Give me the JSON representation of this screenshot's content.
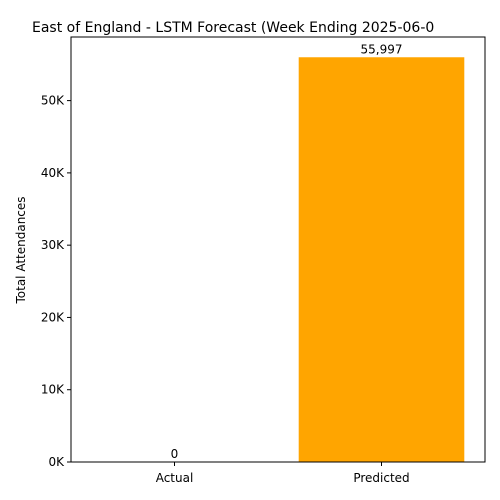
{
  "chart_data": {
    "type": "bar",
    "title": "East of England - LSTM Forecast (Week Ending 2025-06-0",
    "xlabel": "",
    "ylabel": "Total Attendances",
    "categories": [
      "Actual",
      "Predicted"
    ],
    "values": [
      0,
      55997
    ],
    "value_labels": [
      "0",
      "55,997"
    ],
    "colors": [
      "#1f77b4",
      "#ffa500"
    ],
    "ylim": [
      0,
      58800
    ],
    "yticks": [
      0,
      10000,
      20000,
      30000,
      40000,
      50000
    ],
    "ytick_labels": [
      "0K",
      "10K",
      "20K",
      "30K",
      "40K",
      "50K"
    ],
    "grid": false,
    "legend": "none"
  }
}
